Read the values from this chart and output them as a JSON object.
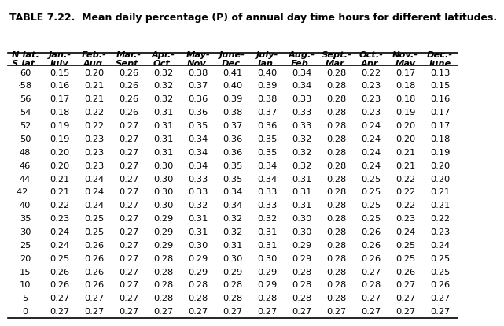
{
  "title": "TABLE 7.22.  Mean daily percentage (P) of annual day time hours for different latitudes.",
  "col_headers": [
    "N lat.\nS lat.",
    "Jan.-\nJuly",
    "Feb.-\nAug.",
    "Mar.-\nSept.",
    "Apr.-\nOct.",
    "May-\nNov.",
    "June-\nDec.",
    "July-\nJan.",
    "Aug.-\nFeb.",
    "Sept.-\nMar.",
    "Oct.-\nApr.",
    "Nov.-\nMay",
    "Dec.-\nJune"
  ],
  "latitudes": [
    "60",
    "58",
    "56",
    "54",
    "52",
    "50",
    "48",
    "46",
    "44",
    "42 .",
    "40",
    "35",
    "30",
    "25",
    "20",
    "15",
    "10",
    "5",
    "0"
  ],
  "lat_prefix": [
    "",
    "·",
    "",
    "",
    "",
    "",
    "",
    "",
    "",
    "",
    "",
    "",
    "",
    "",
    "",
    "",
    "",
    "",
    ""
  ],
  "data": [
    [
      0.15,
      0.2,
      0.26,
      0.32,
      0.38,
      0.41,
      0.4,
      0.34,
      0.28,
      0.22,
      0.17,
      0.13
    ],
    [
      0.16,
      0.21,
      0.26,
      0.32,
      0.37,
      0.4,
      0.39,
      0.34,
      0.28,
      0.23,
      0.18,
      0.15
    ],
    [
      0.17,
      0.21,
      0.26,
      0.32,
      0.36,
      0.39,
      0.38,
      0.33,
      0.28,
      0.23,
      0.18,
      0.16
    ],
    [
      0.18,
      0.22,
      0.26,
      0.31,
      0.36,
      0.38,
      0.37,
      0.33,
      0.28,
      0.23,
      0.19,
      0.17
    ],
    [
      0.19,
      0.22,
      0.27,
      0.31,
      0.35,
      0.37,
      0.36,
      0.33,
      0.28,
      0.24,
      0.2,
      0.17
    ],
    [
      0.19,
      0.23,
      0.27,
      0.31,
      0.34,
      0.36,
      0.35,
      0.32,
      0.28,
      0.24,
      0.2,
      0.18
    ],
    [
      0.2,
      0.23,
      0.27,
      0.31,
      0.34,
      0.36,
      0.35,
      0.32,
      0.28,
      0.24,
      0.21,
      0.19
    ],
    [
      0.2,
      0.23,
      0.27,
      0.3,
      0.34,
      0.35,
      0.34,
      0.32,
      0.28,
      0.24,
      0.21,
      0.2
    ],
    [
      0.21,
      0.24,
      0.27,
      0.3,
      0.33,
      0.35,
      0.34,
      0.31,
      0.28,
      0.25,
      0.22,
      0.2
    ],
    [
      0.21,
      0.24,
      0.27,
      0.3,
      0.33,
      0.34,
      0.33,
      0.31,
      0.28,
      0.25,
      0.22,
      0.21
    ],
    [
      0.22,
      0.24,
      0.27,
      0.3,
      0.32,
      0.34,
      0.33,
      0.31,
      0.28,
      0.25,
      0.22,
      0.21
    ],
    [
      0.23,
      0.25,
      0.27,
      0.29,
      0.31,
      0.32,
      0.32,
      0.3,
      0.28,
      0.25,
      0.23,
      0.22
    ],
    [
      0.24,
      0.25,
      0.27,
      0.29,
      0.31,
      0.32,
      0.31,
      0.3,
      0.28,
      0.26,
      0.24,
      0.23
    ],
    [
      0.24,
      0.26,
      0.27,
      0.29,
      0.3,
      0.31,
      0.31,
      0.29,
      0.28,
      0.26,
      0.25,
      0.24
    ],
    [
      0.25,
      0.26,
      0.27,
      0.28,
      0.29,
      0.3,
      0.3,
      0.29,
      0.28,
      0.26,
      0.25,
      0.25
    ],
    [
      0.26,
      0.26,
      0.27,
      0.28,
      0.29,
      0.29,
      0.29,
      0.28,
      0.28,
      0.27,
      0.26,
      0.25
    ],
    [
      0.26,
      0.26,
      0.27,
      0.28,
      0.28,
      0.28,
      0.29,
      0.28,
      0.28,
      0.28,
      0.27,
      0.26
    ],
    [
      0.27,
      0.27,
      0.27,
      0.28,
      0.28,
      0.28,
      0.28,
      0.28,
      0.28,
      0.27,
      0.27,
      0.27
    ],
    [
      0.27,
      0.27,
      0.27,
      0.27,
      0.27,
      0.27,
      0.27,
      0.27,
      0.27,
      0.27,
      0.27,
      0.27
    ]
  ],
  "bg_color": "#ffffff",
  "title_fontsize": 9.0,
  "header_fontsize": 8.2,
  "cell_fontsize": 8.2
}
